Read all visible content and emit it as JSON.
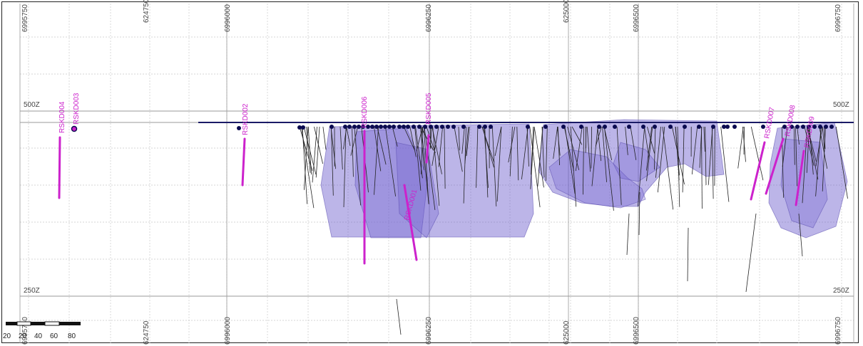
{
  "view": {
    "type": "section",
    "elevation_labels": [
      {
        "id": "elev-500",
        "text": "500Z"
      },
      {
        "id": "elev-250",
        "text": "250Z"
      }
    ],
    "coordinate_labels": [
      "6995750",
      "624750",
      "6996000",
      "6996250",
      "625000",
      "6996500",
      "6996750"
    ],
    "scale_bar": {
      "ticks": [
        "20",
        "20",
        "40",
        "60",
        "80"
      ]
    }
  },
  "drillholes": [
    {
      "name": "RSKD004"
    },
    {
      "name": "RSKD003"
    },
    {
      "name": "RSKD002"
    },
    {
      "name": "RSKD006"
    },
    {
      "name": "RSKD005"
    },
    {
      "name": "RSKD001"
    },
    {
      "name": "RSKD007"
    },
    {
      "name": "RSKD008"
    },
    {
      "name": "RSKD009"
    }
  ],
  "colors": {
    "surface_line": "#1a1a66",
    "collar_dot": "#0b0b50",
    "mineral_body": "#6a5acd",
    "target_hole": "#cc22cc",
    "drill_trace": "#222222",
    "grid": "#bbbbbb"
  }
}
